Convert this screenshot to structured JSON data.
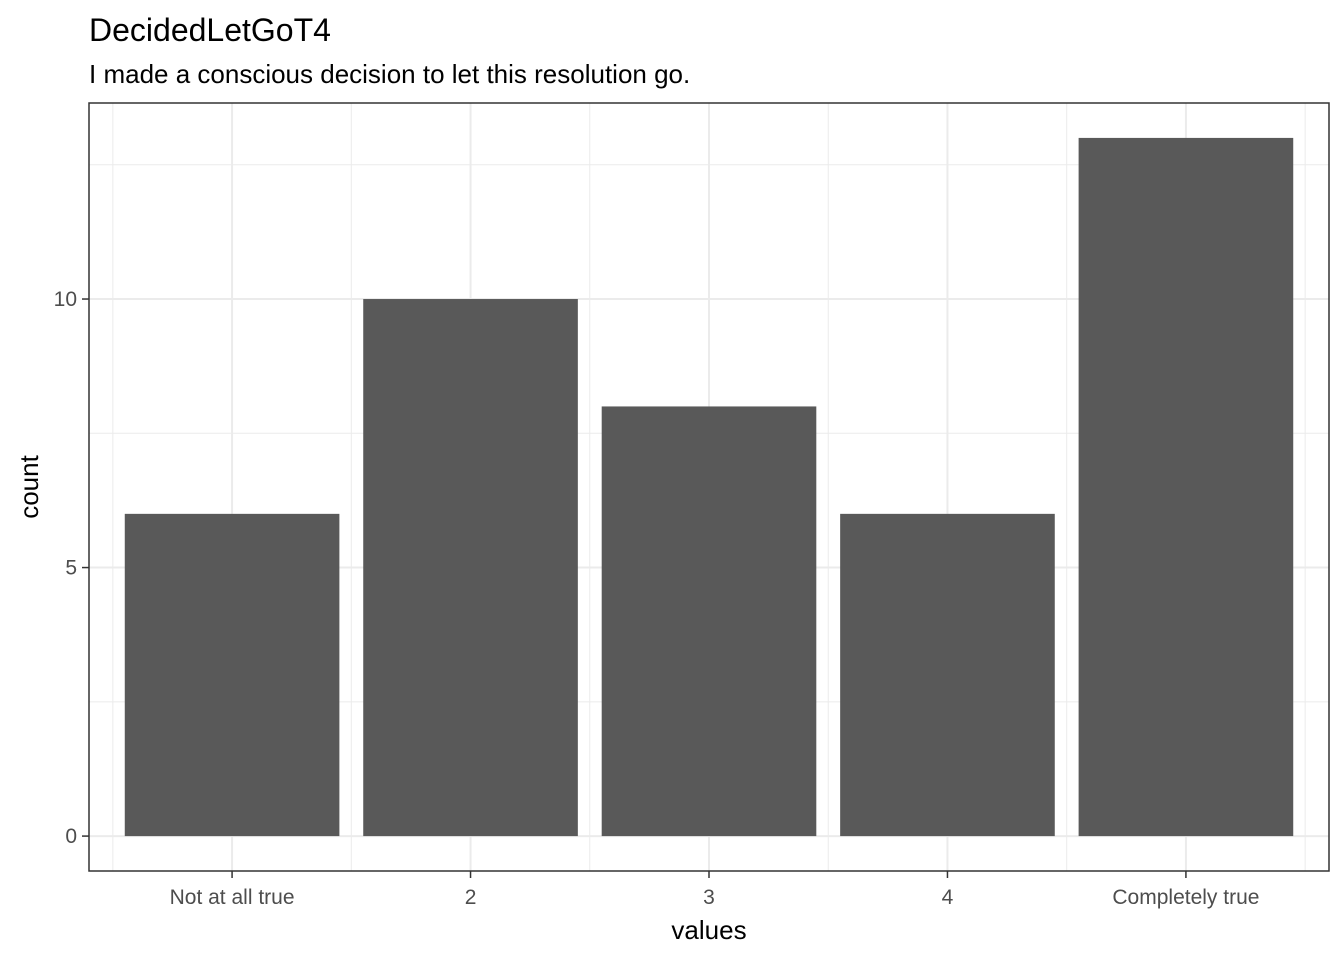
{
  "chart_data": {
    "type": "bar",
    "title": "DecidedLetGoT4",
    "subtitle": "I made a conscious decision to let this resolution go.",
    "xlabel": "values",
    "ylabel": "count",
    "categories": [
      "Not at all true",
      "2",
      "3",
      "4",
      "Completely true"
    ],
    "values": [
      6,
      10,
      8,
      6,
      13
    ],
    "ylim": [
      -0.65,
      13.65
    ],
    "y_ticks": [
      0,
      5,
      10
    ],
    "y_tick_labels": [
      "0",
      "5",
      "10"
    ],
    "grid": true,
    "bar_color": "#595959",
    "grid_color": "#ebebeb",
    "panel_border_color": "#333333"
  }
}
